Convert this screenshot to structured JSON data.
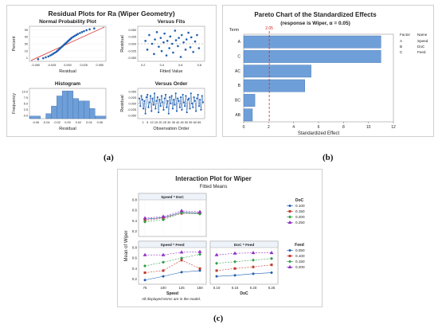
{
  "labels": {
    "a": "(a)",
    "b": "(b)",
    "c": "(c)"
  },
  "colors": {
    "blue": "#1f5fb0",
    "red": "#c0392b",
    "green": "#2e9e44",
    "purple": "#8e2fc4",
    "bar": "#6f9fd8",
    "bar_edge": "#3f6fad",
    "refline": "#d62728"
  },
  "chart_data": [
    {
      "id": "residual_plots",
      "type": "scatter",
      "title": "Residual Plots for Ra (Wiper Geometry)",
      "subplots": [
        {
          "id": "normal_probability",
          "type": "scatter",
          "title": "Normal Probability Plot",
          "xlabel": "Residual",
          "ylabel": "Percent",
          "xlim": [
            -0.075,
            0.075
          ],
          "x_ticks": [
            "-0.050",
            "-0.025",
            "0.000",
            "0.025",
            "0.050"
          ],
          "y_ticks": [
            "1",
            "10",
            "50",
            "90",
            "99"
          ],
          "y_scale": "normal-probability",
          "points": [
            [
              -0.058,
              2
            ],
            [
              -0.048,
              4
            ],
            [
              -0.043,
              6
            ],
            [
              -0.038,
              9
            ],
            [
              -0.034,
              12
            ],
            [
              -0.031,
              15
            ],
            [
              -0.028,
              18
            ],
            [
              -0.025,
              21
            ],
            [
              -0.022,
              24
            ],
            [
              -0.02,
              27
            ],
            [
              -0.018,
              30
            ],
            [
              -0.016,
              33
            ],
            [
              -0.014,
              36
            ],
            [
              -0.012,
              39
            ],
            [
              -0.01,
              42
            ],
            [
              -0.008,
              45
            ],
            [
              -0.006,
              48
            ],
            [
              -0.004,
              51
            ],
            [
              -0.002,
              54
            ],
            [
              0.0,
              57
            ],
            [
              0.002,
              60
            ],
            [
              0.004,
              63
            ],
            [
              0.006,
              66
            ],
            [
              0.008,
              69
            ],
            [
              0.011,
              72
            ],
            [
              0.014,
              75
            ],
            [
              0.017,
              78
            ],
            [
              0.02,
              81
            ],
            [
              0.024,
              84
            ],
            [
              0.028,
              87
            ],
            [
              0.032,
              90
            ],
            [
              0.037,
              93
            ],
            [
              0.043,
              96
            ],
            [
              0.052,
              98
            ]
          ]
        },
        {
          "id": "versus_fits",
          "type": "scatter",
          "title": "Versus Fits",
          "xlabel": "Fitted Value",
          "ylabel": "Residual",
          "xlim": [
            0.1,
            0.8
          ],
          "ylim": [
            -0.06,
            0.06
          ],
          "x_ticks": [
            "0.2",
            "0.4",
            "0.6",
            "0.8"
          ],
          "y_ticks": [
            "-0.050",
            "-0.025",
            "0.000",
            "0.025",
            "0.050"
          ],
          "points": [
            [
              0.18,
              0.01
            ],
            [
              0.2,
              -0.02
            ],
            [
              0.22,
              0.03
            ],
            [
              0.25,
              0.0
            ],
            [
              0.27,
              -0.035
            ],
            [
              0.28,
              0.015
            ],
            [
              0.3,
              0.04
            ],
            [
              0.32,
              -0.01
            ],
            [
              0.34,
              0.02
            ],
            [
              0.35,
              -0.025
            ],
            [
              0.37,
              0.005
            ],
            [
              0.38,
              0.035
            ],
            [
              0.4,
              -0.04
            ],
            [
              0.41,
              0.01
            ],
            [
              0.43,
              -0.015
            ],
            [
              0.44,
              0.025
            ],
            [
              0.46,
              0.0
            ],
            [
              0.47,
              -0.03
            ],
            [
              0.49,
              0.045
            ],
            [
              0.5,
              0.012
            ],
            [
              0.52,
              -0.008
            ],
            [
              0.53,
              0.02
            ],
            [
              0.55,
              -0.045
            ],
            [
              0.56,
              0.03
            ],
            [
              0.58,
              0.005
            ],
            [
              0.6,
              -0.02
            ],
            [
              0.61,
              0.015
            ],
            [
              0.63,
              0.038
            ],
            [
              0.65,
              -0.012
            ],
            [
              0.66,
              0.022
            ],
            [
              0.68,
              -0.028
            ],
            [
              0.7,
              0.008
            ],
            [
              0.72,
              0.03
            ],
            [
              0.74,
              -0.015
            ]
          ]
        },
        {
          "id": "histogram",
          "type": "bar",
          "title": "Histogram",
          "xlabel": "Residual",
          "ylabel": "Frequency",
          "ylim": [
            0,
            12
          ],
          "x_ticks": [
            "-0.06",
            "-0.04",
            "-0.02",
            "0.00",
            "0.02",
            "0.04",
            "0.06"
          ],
          "y_ticks": [
            "0.0",
            "2.5",
            "5.0",
            "7.5",
            "10.0"
          ],
          "bins": [
            -0.07,
            -0.05,
            -0.04,
            -0.03,
            -0.02,
            -0.01,
            0.0,
            0.01,
            0.02,
            0.03,
            0.04,
            0.05,
            0.07
          ],
          "values": [
            1,
            0,
            2,
            5,
            9,
            11,
            11,
            8,
            7,
            7,
            4,
            1
          ]
        },
        {
          "id": "versus_order",
          "type": "line",
          "title": "Versus Order",
          "xlabel": "Observation Order",
          "ylabel": "Residual",
          "ylim": [
            -0.06,
            0.06
          ],
          "x_ticks": [
            "1",
            "5",
            "10",
            "15",
            "20",
            "25",
            "30",
            "35",
            "40",
            "45",
            "50",
            "55",
            "60",
            "65"
          ],
          "y_ticks": [
            "-0.050",
            "-0.025",
            "0.000",
            "0.025",
            "0.050"
          ],
          "values": [
            0.02,
            -0.01,
            0.03,
            0.015,
            -0.02,
            0.01,
            -0.04,
            0.025,
            0.035,
            -0.015,
            0.005,
            0.03,
            -0.03,
            0.02,
            -0.005,
            0.04,
            -0.02,
            0.01,
            0.025,
            -0.035,
            0.015,
            -0.01,
            0.03,
            0.005,
            -0.025,
            0.02,
            0.035,
            -0.015,
            0.01,
            -0.04,
            0.025,
            0.0,
            0.03,
            -0.02,
            0.015,
            -0.005,
            0.04,
            -0.03,
            0.02,
            0.01,
            -0.015,
            0.025,
            -0.025,
            0.035,
            0.005,
            -0.01,
            0.03,
            -0.035,
            0.015,
            0.02,
            -0.02,
            0.04,
            0.0,
            -0.015,
            0.025,
            0.01,
            -0.03,
            0.02,
            0.035,
            -0.01,
            0.015,
            -0.025,
            0.03,
            0.005
          ]
        }
      ]
    },
    {
      "id": "pareto",
      "type": "bar",
      "orientation": "horizontal",
      "title": "Pareto Chart of the Standardized Effects",
      "subtitle": "(response is Wiper, α = 0.05)",
      "xlabel": "Standardized Effect",
      "ylabel": "Term",
      "xlim": [
        0,
        12
      ],
      "x_ticks": [
        "0",
        "2",
        "4",
        "6",
        "8",
        "10",
        "12"
      ],
      "categories": [
        "A",
        "C",
        "AC",
        "B",
        "BC",
        "AB"
      ],
      "values": [
        11.0,
        11.0,
        5.4,
        4.9,
        0.9,
        0.7
      ],
      "reference_line": {
        "value": 2.05,
        "label": "2.05"
      },
      "legend": {
        "headers": [
          "Factor",
          "Name"
        ],
        "rows": [
          [
            "A",
            "Speed"
          ],
          [
            "B",
            "DoC"
          ],
          [
            "C",
            "Feed"
          ]
        ]
      }
    },
    {
      "id": "interaction",
      "type": "line",
      "title": "Interaction Plot for Wiper",
      "subtitle": "Fitted Means",
      "ylabel": "Mean of Wiper",
      "footnote": "All displayed terms are in the model.",
      "ylim": [
        0.1,
        0.8
      ],
      "y_ticks": [
        "0.2",
        "0.4",
        "0.6",
        "0.8"
      ],
      "panels": [
        {
          "id": "speed_doc",
          "label": "Speed * DoC",
          "x": [
            75,
            100,
            125,
            150
          ],
          "series": [
            {
              "name": "0.100",
              "color": "#1f5fb0",
              "marker": "circle",
              "values": [
                0.43,
                0.46,
                0.56,
                0.55
              ]
            },
            {
              "name": "0.150",
              "color": "#c0392b",
              "marker": "square",
              "values": [
                0.41,
                0.45,
                0.54,
                0.54
              ]
            },
            {
              "name": "0.200",
              "color": "#2e9e44",
              "marker": "diamond",
              "values": [
                0.38,
                0.42,
                0.55,
                0.53
              ]
            },
            {
              "name": "0.250",
              "color": "#8e2fc4",
              "marker": "triangle",
              "values": [
                0.45,
                0.48,
                0.59,
                0.57
              ]
            }
          ]
        },
        {
          "id": "speed_feed",
          "label": "Speed * Feed",
          "xlabel": "Speed",
          "x": [
            75,
            100,
            125,
            150
          ],
          "x_ticks": [
            "75",
            "100",
            "125",
            "150"
          ],
          "series": [
            {
              "name": "0.050",
              "color": "#1f5fb0",
              "marker": "circle",
              "values": [
                0.18,
                0.25,
                0.33,
                0.36
              ]
            },
            {
              "name": "0.100",
              "color": "#c0392b",
              "marker": "square",
              "values": [
                0.32,
                0.36,
                0.56,
                0.4
              ]
            },
            {
              "name": "0.150",
              "color": "#2e9e44",
              "marker": "diamond",
              "values": [
                0.45,
                0.52,
                0.6,
                0.67
              ]
            },
            {
              "name": "0.200",
              "color": "#8e2fc4",
              "marker": "triangle",
              "values": [
                0.66,
                0.66,
                0.71,
                0.72
              ]
            }
          ]
        },
        {
          "id": "doc_feed",
          "label": "DoC * Feed",
          "xlabel": "DoC",
          "x": [
            0.1,
            0.15,
            0.2,
            0.25
          ],
          "x_ticks": [
            "0.10",
            "0.15",
            "0.20",
            "0.25"
          ],
          "series": [
            {
              "name": "0.050",
              "color": "#1f5fb0",
              "marker": "circle",
              "values": [
                0.25,
                0.27,
                0.3,
                0.32
              ]
            },
            {
              "name": "0.100",
              "color": "#c0392b",
              "marker": "square",
              "values": [
                0.36,
                0.4,
                0.43,
                0.47
              ]
            },
            {
              "name": "0.150",
              "color": "#2e9e44",
              "marker": "diamond",
              "values": [
                0.5,
                0.53,
                0.56,
                0.59
              ]
            },
            {
              "name": "0.200",
              "color": "#8e2fc4",
              "marker": "triangle",
              "values": [
                0.66,
                0.69,
                0.7,
                0.7
              ]
            }
          ]
        }
      ],
      "legends": [
        {
          "title": "DoC",
          "items": [
            [
              "0.100",
              "#1f5fb0",
              "circle"
            ],
            [
              "0.150",
              "#c0392b",
              "square"
            ],
            [
              "0.200",
              "#2e9e44",
              "diamond"
            ],
            [
              "0.250",
              "#8e2fc4",
              "triangle"
            ]
          ]
        },
        {
          "title": "Feed",
          "items": [
            [
              "0.050",
              "#1f5fb0",
              "circle"
            ],
            [
              "0.100",
              "#c0392b",
              "square"
            ],
            [
              "0.150",
              "#2e9e44",
              "diamond"
            ],
            [
              "0.200",
              "#8e2fc4",
              "triangle"
            ]
          ]
        }
      ]
    }
  ]
}
